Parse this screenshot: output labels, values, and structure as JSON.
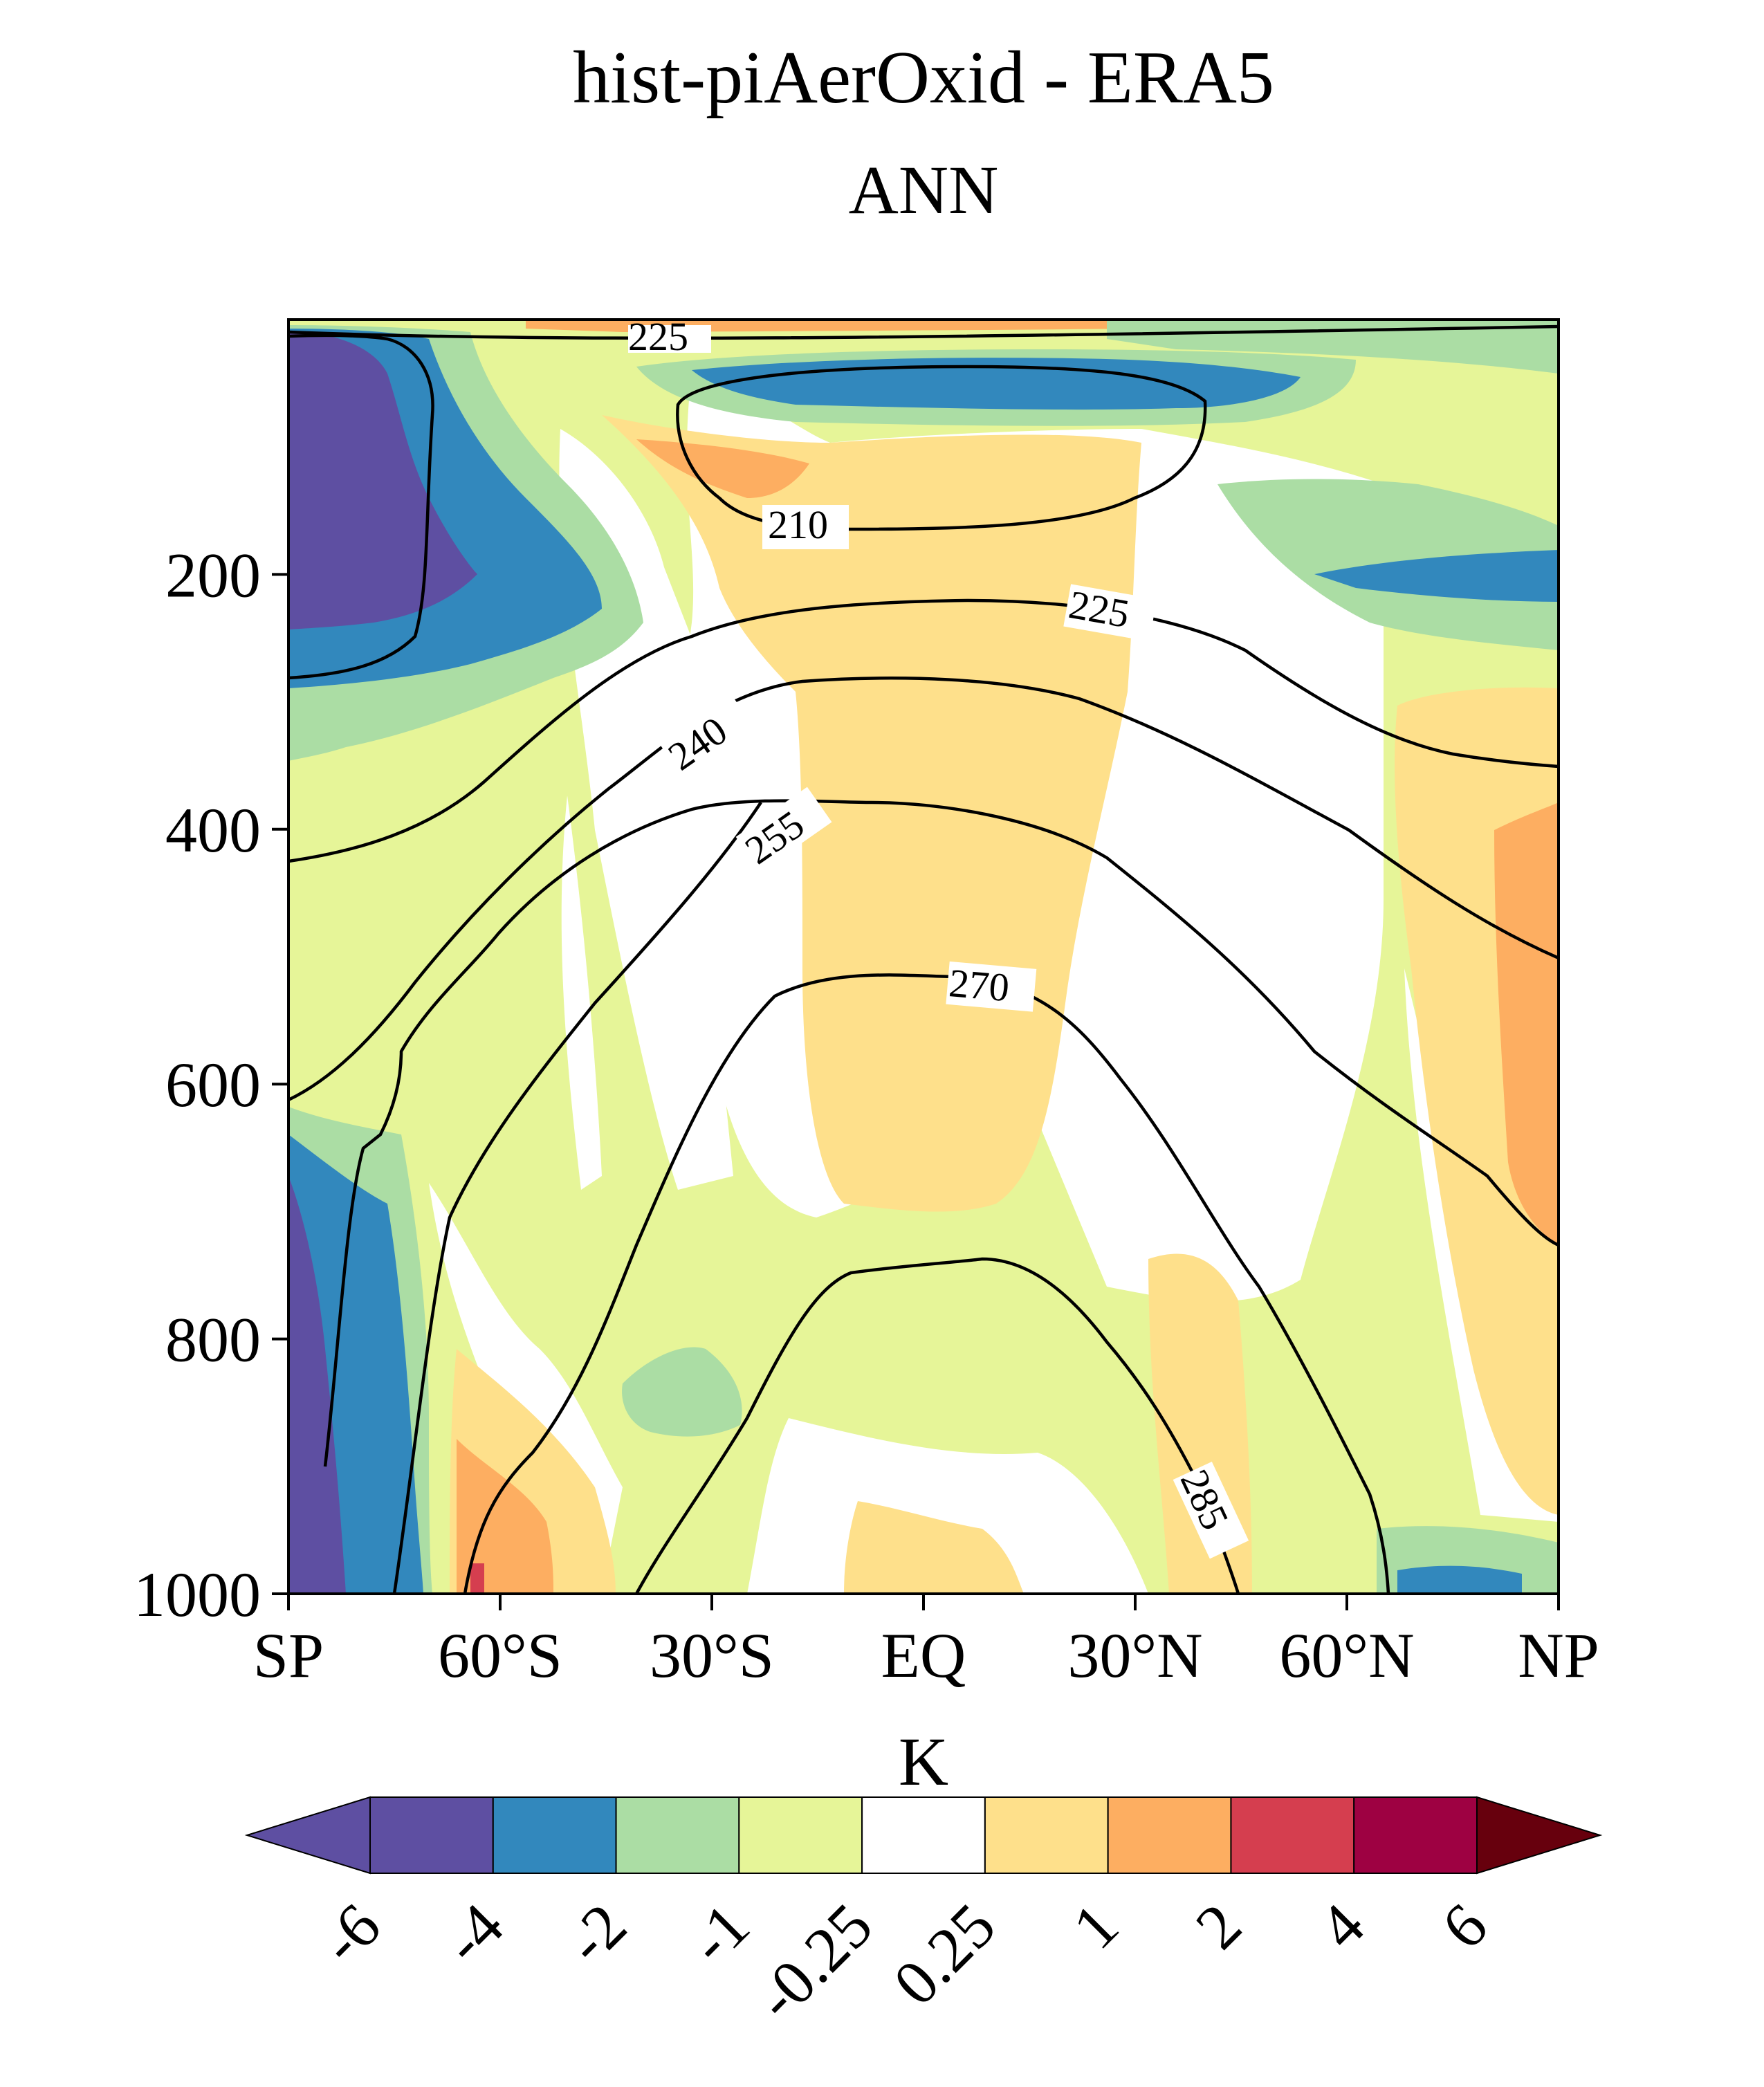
{
  "chart_data": {
    "type": "contour",
    "title": "hist-piAerOxid - ERA5",
    "subtitle": "ANN",
    "xlabel": "",
    "ylabel": "",
    "x_ticks": [
      "SP",
      "60°S",
      "30°S",
      "EQ",
      "30°N",
      "60°N",
      "NP"
    ],
    "x_tick_values": [
      -90,
      -60,
      -30,
      0,
      30,
      60,
      90
    ],
    "xlim": [
      -90,
      90
    ],
    "y_ticks": [
      "200",
      "400",
      "600",
      "800",
      "1000"
    ],
    "y_tick_values": [
      200,
      400,
      600,
      800,
      1000
    ],
    "ylim": [
      1000,
      0
    ],
    "colorbar": {
      "label": "K",
      "levels": [
        "-6",
        "-4",
        "-2",
        "-1",
        "-0.25",
        "0.25",
        "1",
        "2",
        "4",
        "6"
      ],
      "colors": [
        "#5e4fa2",
        "#3288bd",
        "#abdda4",
        "#e6f598",
        "#ffffff",
        "#fee08b",
        "#fdae61",
        "#d53e4f",
        "#9e0142"
      ],
      "under_color": "#5e4fa2",
      "over_color": "#67000d",
      "extend": "both"
    },
    "contour_labels": [
      "210",
      "225",
      "240",
      "255",
      "270",
      "285"
    ]
  }
}
